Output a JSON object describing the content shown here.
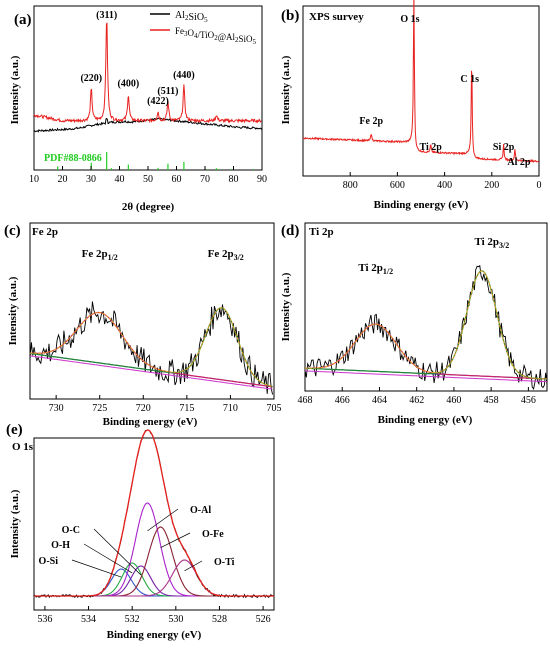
{
  "chart_data": [
    {
      "panel_label": "(a)",
      "type": "line",
      "xlabel": "2θ (degree)",
      "ylabel": "Intensity (a.u.)",
      "xlim": [
        10,
        90
      ],
      "x_ticks": [
        "10",
        "20",
        "30",
        "40",
        "50",
        "60",
        "70",
        "80",
        "90"
      ],
      "series": [
        {
          "name": "Al2SiO5",
          "color": "#000000",
          "base": 0.22,
          "x": [
            10,
            14,
            18,
            22,
            26,
            28,
            30,
            32,
            34,
            36,
            38,
            40,
            42,
            44,
            46,
            48,
            50,
            52,
            54,
            56,
            58,
            60,
            62,
            64,
            66,
            68,
            70,
            72,
            74,
            76,
            78,
            80,
            82,
            84,
            86,
            88,
            90
          ],
          "y": [
            0.15,
            0.16,
            0.17,
            0.18,
            0.2,
            0.22,
            0.24,
            0.26,
            0.27,
            0.29,
            0.3,
            0.3,
            0.31,
            0.3,
            0.31,
            0.32,
            0.33,
            0.34,
            0.35,
            0.34,
            0.33,
            0.32,
            0.31,
            0.3,
            0.29,
            0.28,
            0.27,
            0.26,
            0.25,
            0.24,
            0.23,
            0.22,
            0.21,
            0.21,
            0.2,
            0.2,
            0.19
          ]
        },
        {
          "name": "Fe3O4/TiO2@Al2SiO5",
          "color": "#e8221f",
          "base": 0.5,
          "peaks": [
            [
              30.1,
              0.22
            ],
            [
              35.5,
              0.72
            ],
            [
              43.1,
              0.18
            ],
            [
              53.5,
              0.06
            ],
            [
              57.0,
              0.13
            ],
            [
              62.6,
              0.24
            ],
            [
              74.0,
              0.04
            ]
          ]
        }
      ],
      "peak_labels": [
        {
          "x": 30.1,
          "text": "(220)"
        },
        {
          "x": 35.5,
          "text": "(311)"
        },
        {
          "x": 43.1,
          "text": "(400)"
        },
        {
          "x": 53.5,
          "text": "(422)"
        },
        {
          "x": 57.0,
          "text": "(511)"
        },
        {
          "x": 62.6,
          "text": "(440)"
        }
      ],
      "reference": {
        "label": "PDF#88-0866",
        "color": "#22cc22",
        "lines": [
          [
            18.3,
            0.2
          ],
          [
            30.1,
            0.4
          ],
          [
            35.5,
            1.0
          ],
          [
            37.1,
            0.1
          ],
          [
            43.1,
            0.3
          ],
          [
            53.5,
            0.12
          ],
          [
            57.0,
            0.35
          ],
          [
            62.6,
            0.45
          ],
          [
            71.0,
            0.05
          ],
          [
            74.0,
            0.1
          ],
          [
            75.0,
            0.05
          ],
          [
            79.0,
            0.05
          ],
          [
            87.0,
            0.05
          ]
        ]
      }
    },
    {
      "panel_label": "(b)",
      "title": "XPS survey",
      "type": "line",
      "xlabel": "Binding energy (eV)",
      "ylabel": "Intensity (a.u.)",
      "xlim": [
        1000,
        0
      ],
      "x_ticks": [
        "800",
        "600",
        "400",
        "200",
        "0"
      ],
      "color": "#e8221f",
      "peaks": [
        [
          711,
          0.05
        ],
        [
          530,
          0.95
        ],
        [
          459,
          0.05
        ],
        [
          285,
          0.62
        ],
        [
          150,
          0.1
        ],
        [
          102,
          0.07
        ]
      ],
      "annotations": [
        {
          "x": 530,
          "text": "O 1s"
        },
        {
          "x": 285,
          "text": "C 1s"
        },
        {
          "x": 711,
          "text": "Fe 2p"
        },
        {
          "x": 459,
          "text": "Ti 2p"
        },
        {
          "x": 150,
          "text": "Si 2p"
        },
        {
          "x": 102,
          "text": "Al 2p"
        }
      ]
    },
    {
      "panel_label": "(c)",
      "title": "Fe 2p",
      "type": "line",
      "xlabel": "Binding energy (eV)",
      "ylabel": "Intensity (a.u.)",
      "xlim": [
        733,
        705
      ],
      "x_ticks": [
        "730",
        "725",
        "720",
        "715",
        "710",
        "705"
      ],
      "peaks": [
        {
          "label": "Fe 2p1/2",
          "center": 725.0,
          "height": 0.42,
          "width": 2.6
        },
        {
          "label": "Fe 2p3/2",
          "center": 711.0,
          "height": 0.6,
          "width": 1.8
        }
      ]
    },
    {
      "panel_label": "(d)",
      "title": "Ti 2p",
      "type": "line",
      "xlabel": "Binding energy (eV)",
      "ylabel": "Intensity (a.u.)",
      "xlim": [
        468,
        455
      ],
      "x_ticks": [
        "468",
        "466",
        "464",
        "462",
        "460",
        "458",
        "456"
      ],
      "peaks": [
        {
          "label": "Ti 2p1/2",
          "center": 464.2,
          "height": 0.35,
          "width": 1.1
        },
        {
          "label": "Ti 2p3/2",
          "center": 458.5,
          "height": 0.78,
          "width": 0.8
        }
      ]
    },
    {
      "panel_label": "(e)",
      "title": "O 1s",
      "type": "line",
      "xlabel": "Binding energy (eV)",
      "ylabel": "Intensity (a.u.)",
      "xlim": [
        536.5,
        525.5
      ],
      "x_ticks": [
        "536",
        "534",
        "532",
        "530",
        "528",
        "526"
      ],
      "components": [
        {
          "name": "O-Si",
          "center": 532.5,
          "height": 0.18,
          "width": 0.45,
          "color": "#3355cc"
        },
        {
          "name": "O-H",
          "center": 532.0,
          "height": 0.22,
          "width": 0.45,
          "color": "#22aa44"
        },
        {
          "name": "O-C",
          "center": 531.6,
          "height": 0.2,
          "width": 0.45,
          "color": "#7722aa"
        },
        {
          "name": "O-Al",
          "center": 531.3,
          "height": 0.62,
          "width": 0.55,
          "color": "#aa22cc"
        },
        {
          "name": "O-Fe",
          "center": 530.7,
          "height": 0.46,
          "width": 0.55,
          "color": "#882233"
        },
        {
          "name": "O-Ti",
          "center": 529.6,
          "height": 0.24,
          "width": 0.55,
          "color": "#aa3388"
        }
      ]
    }
  ]
}
